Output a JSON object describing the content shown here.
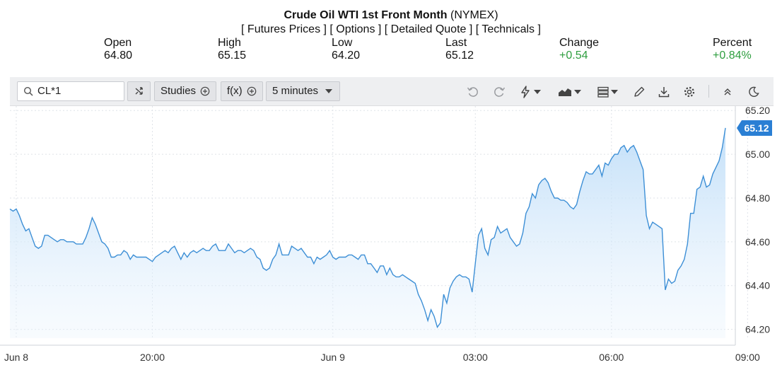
{
  "header": {
    "title": "Crude Oil WTI 1st Front Month",
    "exchange": "(NYMEX)",
    "links": [
      "[ Futures Prices ]",
      "[ Options ]",
      "[ Detailed Quote ]",
      "[ Technicals ]"
    ]
  },
  "stats": {
    "open_label": "Open",
    "open": "64.80",
    "high_label": "High",
    "high": "65.15",
    "low_label": "Low",
    "low": "64.20",
    "last_label": "Last",
    "last": "65.12",
    "change_label": "Change",
    "change": "+0.54",
    "percent_label": "Percent",
    "percent": "+0.84%"
  },
  "colors": {
    "positive": "#2e9e3f",
    "line": "#3d8fd6",
    "fill_top": "#bcdcf8",
    "badge": "#2a7fd4"
  },
  "toolbar": {
    "symbol": "CL*1",
    "studies_label": "Studies",
    "fx_label": "f(x)",
    "interval_label": "5 minutes",
    "icons": [
      "search-icon",
      "shuffle-icon",
      "undo-icon",
      "redo-icon",
      "lightning-icon",
      "area-chart-icon",
      "layout-icon",
      "pencil-icon",
      "download-icon",
      "gear-icon",
      "collapse-icon",
      "moon-icon"
    ]
  },
  "chart_data": {
    "type": "area",
    "ylim": [
      64.16,
      65.22
    ],
    "yticks": [
      {
        "v": 65.2,
        "label": "65.20"
      },
      {
        "v": 65.0,
        "label": "65.00"
      },
      {
        "v": 64.8,
        "label": "64.80"
      },
      {
        "v": 64.6,
        "label": "64.60"
      },
      {
        "v": 64.4,
        "label": "64.40"
      },
      {
        "v": 64.2,
        "label": "64.20"
      }
    ],
    "xticks": [
      {
        "i": 2,
        "label": "Jun 8"
      },
      {
        "i": 45,
        "label": "20:00"
      },
      {
        "i": 102,
        "label": "Jun 9"
      },
      {
        "i": 147,
        "label": "03:00"
      },
      {
        "i": 190,
        "label": "06:00"
      },
      {
        "i": 233,
        "label": "09:00"
      }
    ],
    "last_value": 65.12,
    "last_label": "65.12",
    "values": [
      64.75,
      64.74,
      64.75,
      64.72,
      64.68,
      64.65,
      64.66,
      64.62,
      64.58,
      64.57,
      64.58,
      64.63,
      64.63,
      64.62,
      64.61,
      64.6,
      64.61,
      64.61,
      64.6,
      64.6,
      64.6,
      64.59,
      64.59,
      64.59,
      64.62,
      64.66,
      64.71,
      64.68,
      64.64,
      64.6,
      64.59,
      64.57,
      64.53,
      64.53,
      64.54,
      64.54,
      64.56,
      64.55,
      64.52,
      64.54,
      64.53,
      64.53,
      64.53,
      64.53,
      64.52,
      64.51,
      64.53,
      64.54,
      64.55,
      64.56,
      64.55,
      64.57,
      64.58,
      64.55,
      64.52,
      64.55,
      64.53,
      64.55,
      64.56,
      64.55,
      64.56,
      64.57,
      64.56,
      64.56,
      64.58,
      64.59,
      64.56,
      64.56,
      64.56,
      64.59,
      64.57,
      64.55,
      64.56,
      64.56,
      64.55,
      64.56,
      64.57,
      64.56,
      64.53,
      64.52,
      64.48,
      64.47,
      64.48,
      64.52,
      64.54,
      64.59,
      64.54,
      64.54,
      64.54,
      64.58,
      64.57,
      64.56,
      64.57,
      64.55,
      64.53,
      64.53,
      64.5,
      64.53,
      64.52,
      64.53,
      64.54,
      64.56,
      64.53,
      64.52,
      64.53,
      64.53,
      64.53,
      64.54,
      64.54,
      64.53,
      64.52,
      64.54,
      64.54,
      64.5,
      64.5,
      64.48,
      64.46,
      64.49,
      64.49,
      64.45,
      64.48,
      64.45,
      64.44,
      64.44,
      64.45,
      64.44,
      64.43,
      64.42,
      64.41,
      64.36,
      64.33,
      64.29,
      64.24,
      64.29,
      64.26,
      64.21,
      64.23,
      64.36,
      64.32,
      64.39,
      64.42,
      64.44,
      64.45,
      64.44,
      64.44,
      64.43,
      64.37,
      64.5,
      64.63,
      64.66,
      64.57,
      64.54,
      64.61,
      64.62,
      64.67,
      64.64,
      64.65,
      64.66,
      64.62,
      64.6,
      64.58,
      64.59,
      64.64,
      64.73,
      64.76,
      64.82,
      64.8,
      64.86,
      64.88,
      64.89,
      64.87,
      64.83,
      64.8,
      64.8,
      64.79,
      64.79,
      64.78,
      64.76,
      64.75,
      64.77,
      64.83,
      64.88,
      64.92,
      64.91,
      64.91,
      64.93,
      64.95,
      64.9,
      64.96,
      64.95,
      64.98,
      65.0,
      65.0,
      65.03,
      65.04,
      65.01,
      65.03,
      65.04,
      65.01,
      64.97,
      64.93,
      64.72,
      64.66,
      64.69,
      64.68,
      64.67,
      64.66,
      64.38,
      64.43,
      64.41,
      64.42,
      64.47,
      64.49,
      64.52,
      64.59,
      64.73,
      64.73,
      64.84,
      64.85,
      64.9,
      64.85,
      64.86,
      64.91,
      64.94,
      64.97,
      65.03,
      65.12
    ]
  }
}
